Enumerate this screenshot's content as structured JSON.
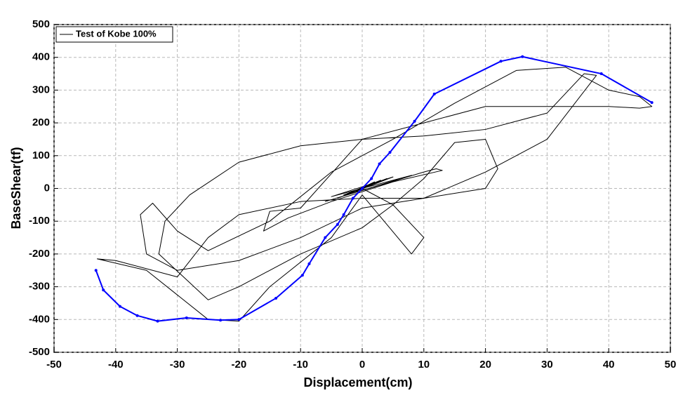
{
  "chart_data": {
    "type": "line",
    "xlabel": "Displacement(cm)",
    "ylabel": "BaseShear(tf)",
    "xlim": [
      -50,
      50
    ],
    "ylim": [
      -500,
      500
    ],
    "xticks": [
      -50,
      -40,
      -30,
      -20,
      -10,
      0,
      10,
      20,
      30,
      40,
      50
    ],
    "yticks": [
      -500,
      -400,
      -300,
      -200,
      -100,
      0,
      100,
      200,
      300,
      400,
      500
    ],
    "grid": true,
    "legend": "upper left",
    "series": [
      {
        "name": "Test of Kobe 100%",
        "color": "#000000",
        "markers": false,
        "x": [
          0,
          1,
          -1,
          2,
          -2,
          3,
          -3,
          4,
          -4,
          5,
          -5,
          8,
          -6,
          10,
          12,
          13,
          5,
          -5,
          -12,
          -16,
          -15,
          -10,
          0,
          10,
          20,
          30,
          36,
          38,
          30,
          20,
          10,
          0,
          -10,
          -20,
          -30,
          -35,
          -36,
          -34,
          -30,
          -25,
          -15,
          -5,
          5,
          15,
          25,
          33,
          40,
          45,
          47,
          45,
          40,
          30,
          20,
          10,
          0,
          -10,
          -20,
          -28,
          -32,
          -33,
          -25,
          -20,
          -10,
          0,
          5,
          10,
          15,
          20,
          22,
          20,
          10,
          0,
          -10,
          -20,
          -25,
          -30,
          -40,
          -43,
          -35,
          -25,
          -20,
          -15,
          -5,
          0,
          8,
          10,
          5,
          0
        ],
        "values": [
          0,
          10,
          -10,
          20,
          -15,
          25,
          -20,
          30,
          -30,
          35,
          -25,
          40,
          -40,
          50,
          60,
          55,
          20,
          -40,
          -90,
          -130,
          -70,
          -60,
          150,
          160,
          180,
          230,
          350,
          345,
          150,
          50,
          -30,
          -60,
          -150,
          -220,
          -250,
          -200,
          -80,
          -45,
          -130,
          -190,
          -100,
          50,
          150,
          260,
          360,
          370,
          300,
          280,
          250,
          245,
          250,
          250,
          250,
          200,
          150,
          130,
          80,
          -20,
          -100,
          -200,
          -340,
          -300,
          -200,
          -120,
          -50,
          30,
          140,
          150,
          60,
          0,
          -30,
          -30,
          -40,
          -80,
          -150,
          -270,
          -220,
          -215,
          -250,
          -400,
          -405,
          -300,
          -150,
          -20,
          -200,
          -150,
          -50,
          0
        ]
      },
      {
        "color": "#0000ff",
        "markers": true,
        "x": [
          -43.2,
          -42,
          -39.3,
          -36.5,
          -33.2,
          -28.5,
          -23,
          -20,
          -14,
          -9.7,
          -8.6,
          -6,
          -4,
          -3,
          -1.5,
          0,
          1.5,
          2.8,
          4.5,
          8.5,
          11.7,
          22.5,
          26,
          38.8,
          47
        ],
        "values": [
          -250,
          -310,
          -360,
          -388,
          -405,
          -395,
          -402,
          -400,
          -335,
          -265,
          -230,
          -150,
          -110,
          -80,
          -30,
          0,
          30,
          75,
          110,
          205,
          288,
          388,
          402,
          350,
          262
        ]
      }
    ]
  }
}
